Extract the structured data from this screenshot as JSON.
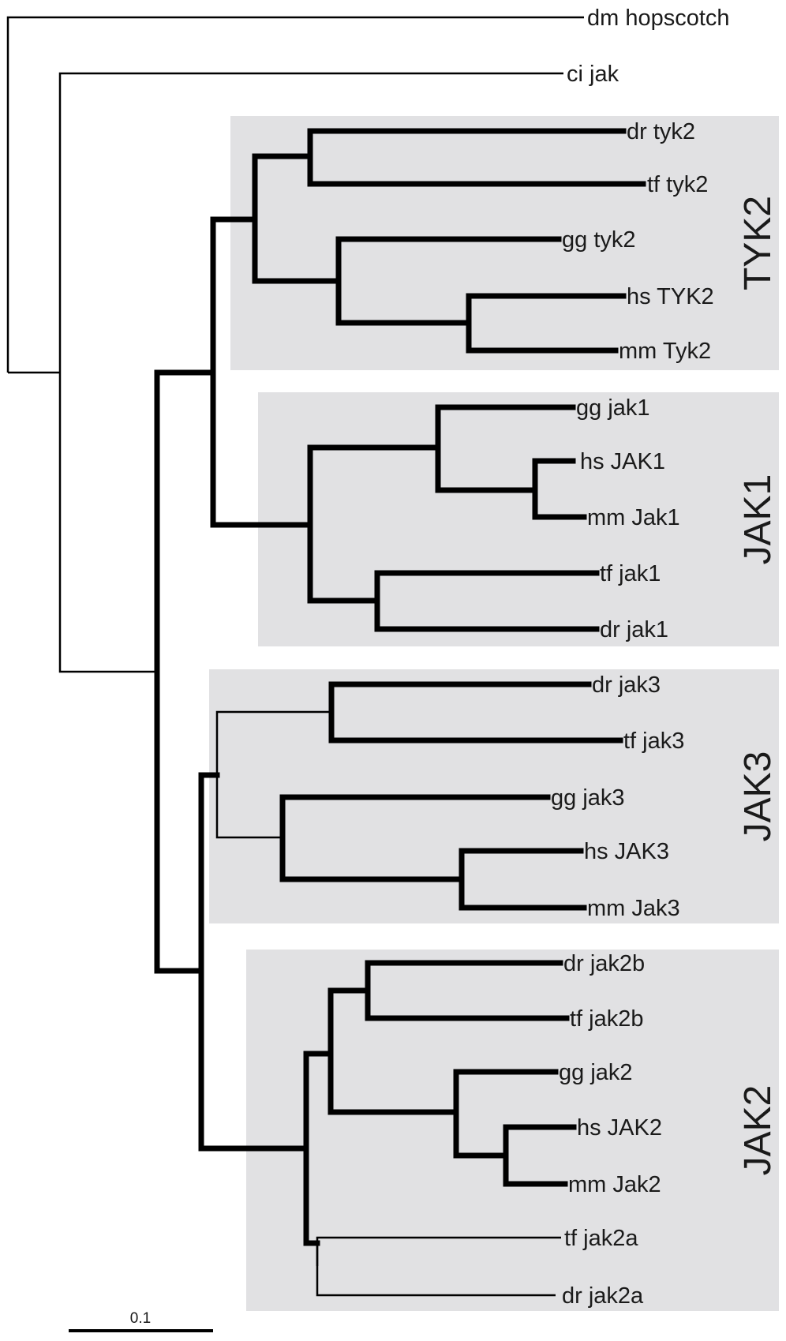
{
  "scale_bar": {
    "label": "0.1"
  },
  "groups": [
    {
      "id": "tyk2",
      "label": "TYK2",
      "color": "#e1e1e3"
    },
    {
      "id": "jak1",
      "label": "JAK1",
      "color": "#e1e1e3"
    },
    {
      "id": "jak3",
      "label": "JAK3",
      "color": "#e1e1e3"
    },
    {
      "id": "jak2",
      "label": "JAK2",
      "color": "#e1e1e3"
    }
  ],
  "leaves": [
    {
      "id": "dm-hopscotch",
      "label": "dm hopscotch"
    },
    {
      "id": "ci-jak",
      "label": "ci jak"
    },
    {
      "id": "dr-tyk2",
      "label": "dr tyk2"
    },
    {
      "id": "tf-tyk2",
      "label": "tf tyk2"
    },
    {
      "id": "gg-tyk2",
      "label": "gg tyk2"
    },
    {
      "id": "hs-tyk2",
      "label": "hs TYK2"
    },
    {
      "id": "mm-tyk2",
      "label": "mm Tyk2"
    },
    {
      "id": "gg-jak1",
      "label": "gg jak1"
    },
    {
      "id": "hs-jak1",
      "label": "hs JAK1"
    },
    {
      "id": "mm-jak1",
      "label": "mm Jak1"
    },
    {
      "id": "tf-jak1",
      "label": "tf jak1"
    },
    {
      "id": "dr-jak1",
      "label": "dr jak1"
    },
    {
      "id": "dr-jak3",
      "label": "dr jak3"
    },
    {
      "id": "tf-jak3",
      "label": "tf jak3"
    },
    {
      "id": "gg-jak3",
      "label": "gg jak3"
    },
    {
      "id": "hs-jak3",
      "label": "hs JAK3"
    },
    {
      "id": "mm-jak3",
      "label": "mm Jak3"
    },
    {
      "id": "dr-jak2b",
      "label": "dr jak2b"
    },
    {
      "id": "tf-jak2b",
      "label": "tf jak2b"
    },
    {
      "id": "gg-jak2",
      "label": "gg jak2"
    },
    {
      "id": "hs-jak2",
      "label": "hs JAK2"
    },
    {
      "id": "mm-jak2",
      "label": "mm Jak2"
    },
    {
      "id": "tf-jak2a",
      "label": "tf jak2a"
    },
    {
      "id": "dr-jak2a",
      "label": "dr jak2a"
    }
  ],
  "colors": {
    "branch": "#000000",
    "text": "#1a1a1a",
    "background": "#ffffff"
  }
}
